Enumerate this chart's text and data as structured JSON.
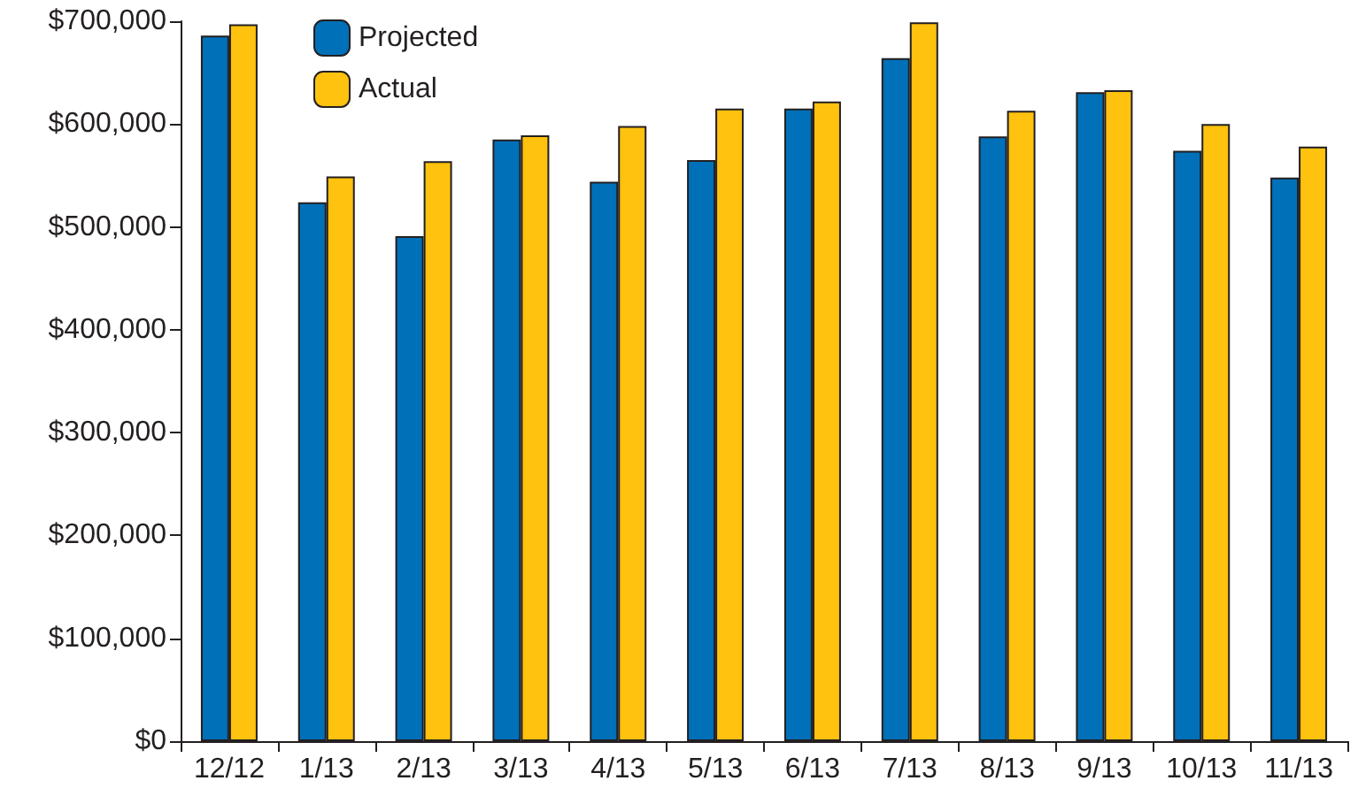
{
  "chart_data": {
    "type": "bar",
    "categories": [
      "12/12",
      "1/13",
      "2/13",
      "3/13",
      "4/13",
      "5/13",
      "6/13",
      "7/13",
      "8/13",
      "9/13",
      "10/13",
      "11/13"
    ],
    "series": [
      {
        "name": "Projected",
        "color": "#0070b8",
        "values": [
          686000,
          524000,
          491000,
          585000,
          544000,
          565000,
          615000,
          664000,
          588000,
          631000,
          574000,
          548000
        ]
      },
      {
        "name": "Actual",
        "color": "#ffc20e",
        "values": [
          697000,
          549000,
          564000,
          589000,
          598000,
          615000,
          622000,
          699000,
          613000,
          633000,
          600000,
          578000
        ]
      }
    ],
    "ylim": [
      0,
      700000
    ],
    "yticks": [
      {
        "value": 0,
        "label": "$0"
      },
      {
        "value": 100000,
        "label": "$100,000"
      },
      {
        "value": 200000,
        "label": "$200,000"
      },
      {
        "value": 300000,
        "label": "$300,000"
      },
      {
        "value": 400000,
        "label": "$400,000"
      },
      {
        "value": 500000,
        "label": "$500,000"
      },
      {
        "value": 600000,
        "label": "$600,000"
      },
      {
        "value": 700000,
        "label": "$700,000"
      }
    ],
    "grid": false,
    "legend": "top left"
  }
}
